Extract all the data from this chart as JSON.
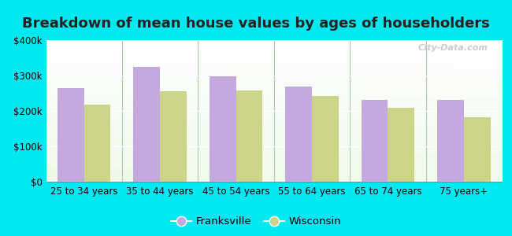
{
  "title": "Breakdown of mean house values by ages of householders",
  "categories": [
    "25 to 34 years",
    "35 to 44 years",
    "45 to 54 years",
    "55 to 64 years",
    "65 to 74 years",
    "75 years+"
  ],
  "franksville": [
    265000,
    325000,
    298000,
    268000,
    232000,
    232000
  ],
  "wisconsin": [
    218000,
    255000,
    258000,
    243000,
    210000,
    183000
  ],
  "franksville_color": "#c4a8e0",
  "wisconsin_color": "#ccd488",
  "background_outer": "#00e8f0",
  "ylim": [
    0,
    400000
  ],
  "yticks": [
    0,
    100000,
    200000,
    300000,
    400000
  ],
  "ytick_labels": [
    "$0",
    "$100k",
    "$200k",
    "$300k",
    "$400k"
  ],
  "legend_franksville": "Franksville",
  "legend_wisconsin": "Wisconsin",
  "bar_width": 0.35,
  "title_fontsize": 13,
  "tick_fontsize": 8.5,
  "legend_fontsize": 9.5,
  "divider_positions": [
    1,
    2,
    3,
    4,
    5
  ],
  "watermark_text": "City-Data.com"
}
